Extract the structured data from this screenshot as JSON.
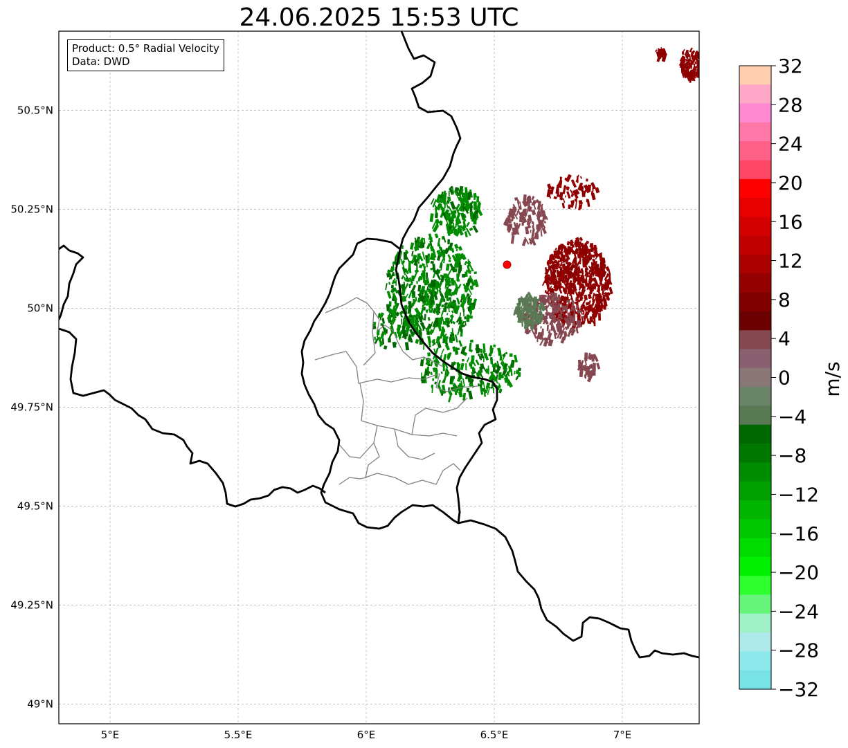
{
  "title": "24.06.2025 15:53 UTC",
  "info": {
    "product": "Product: 0.5° Radial Velocity",
    "source": "Data: DWD"
  },
  "map": {
    "lon_range": [
      4.8,
      7.3
    ],
    "lat_range": [
      48.95,
      50.7
    ],
    "x_ticks": [
      {
        "lon": 5.0,
        "label": "5°E"
      },
      {
        "lon": 5.5,
        "label": "5.5°E"
      },
      {
        "lon": 6.0,
        "label": "6°E"
      },
      {
        "lon": 6.5,
        "label": "6.5°E"
      },
      {
        "lon": 7.0,
        "label": "7°E"
      }
    ],
    "y_ticks": [
      {
        "lat": 49.0,
        "label": "49°N"
      },
      {
        "lat": 49.25,
        "label": "49.25°N"
      },
      {
        "lat": 49.5,
        "label": "49.5°N"
      },
      {
        "lat": 49.75,
        "label": "49.75°N"
      },
      {
        "lat": 50.0,
        "label": "50°N"
      },
      {
        "lat": 50.25,
        "label": "50.25°N"
      },
      {
        "lat": 50.5,
        "label": "50.5°N"
      }
    ],
    "grid": true,
    "radar_site": {
      "lon": 6.55,
      "lat": 50.11,
      "color": "#ff0000"
    }
  },
  "colorbar": {
    "unit": "m/s",
    "min": -32,
    "max": 32,
    "tick_labels": [
      {
        "value": 32,
        "label": "32"
      },
      {
        "value": 28,
        "label": "28"
      },
      {
        "value": 24,
        "label": "24"
      },
      {
        "value": 20,
        "label": "20"
      },
      {
        "value": 16,
        "label": "16"
      },
      {
        "value": 12,
        "label": "12"
      },
      {
        "value": 8,
        "label": "8"
      },
      {
        "value": 4,
        "label": "4"
      },
      {
        "value": 0,
        "label": "0"
      },
      {
        "value": -4,
        "label": "−4"
      },
      {
        "value": -8,
        "label": "−8"
      },
      {
        "value": -12,
        "label": "−12"
      },
      {
        "value": -16,
        "label": "−16"
      },
      {
        "value": -20,
        "label": "−20"
      },
      {
        "value": -24,
        "label": "−24"
      },
      {
        "value": -28,
        "label": "−28"
      },
      {
        "value": -32,
        "label": "−32"
      }
    ],
    "colors_top_to_bottom": [
      "#ffcfb0",
      "#ffa8c8",
      "#ff88d0",
      "#ff78a8",
      "#ff6088",
      "#ff4868",
      "#ff0000",
      "#e80000",
      "#d40000",
      "#c00000",
      "#aa0000",
      "#920000",
      "#800000",
      "#6a0000",
      "#864850",
      "#8a6070",
      "#8a7878",
      "#6a8468",
      "#5a7a55",
      "#006600",
      "#007800",
      "#008c00",
      "#00a000",
      "#00b400",
      "#00c800",
      "#00dc00",
      "#00f000",
      "#2eff2e",
      "#66f57a",
      "#a0f0c8",
      "#aeeaea",
      "#8ce8ea",
      "#78e2e6"
    ]
  },
  "echo_colors": {
    "outbound_dark": "#8b0000",
    "outbound_mid": "#920000",
    "outbound_light": "#864850",
    "inbound_green": "#008c00",
    "inbound_dark": "#006600",
    "near_zero": "#5a7a55"
  }
}
